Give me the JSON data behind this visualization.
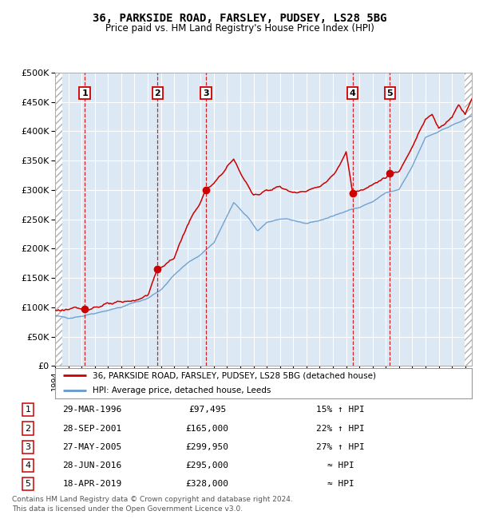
{
  "title": "36, PARKSIDE ROAD, FARSLEY, PUDSEY, LS28 5BG",
  "subtitle": "Price paid vs. HM Land Registry's House Price Index (HPI)",
  "legend_line1": "36, PARKSIDE ROAD, FARSLEY, PUDSEY, LS28 5BG (detached house)",
  "legend_line2": "HPI: Average price, detached house, Leeds",
  "footer1": "Contains HM Land Registry data © Crown copyright and database right 2024.",
  "footer2": "This data is licensed under the Open Government Licence v3.0.",
  "sale_dates_num": [
    1996.24,
    2001.74,
    2005.41,
    2016.49,
    2019.3
  ],
  "sale_prices": [
    97495,
    165000,
    299950,
    295000,
    328000
  ],
  "sale_labels": [
    "1",
    "2",
    "3",
    "4",
    "5"
  ],
  "vline_dates": [
    1996.24,
    2001.74,
    2005.41,
    2016.49,
    2019.3
  ],
  "table_rows": [
    [
      "1",
      "29-MAR-1996",
      "£97,495",
      "15% ↑ HPI"
    ],
    [
      "2",
      "28-SEP-2001",
      "£165,000",
      "22% ↑ HPI"
    ],
    [
      "3",
      "27-MAY-2005",
      "£299,950",
      "27% ↑ HPI"
    ],
    [
      "4",
      "28-JUN-2016",
      "£295,000",
      "≈ HPI"
    ],
    [
      "5",
      "18-APR-2019",
      "£328,000",
      "≈ HPI"
    ]
  ],
  "plot_bg_color": "#dce9f5",
  "red_line_color": "#cc0000",
  "blue_line_color": "#6699cc",
  "vline_color": "#cc0000",
  "dot_color": "#cc0000",
  "grid_color": "#ffffff",
  "ylim": [
    0,
    500000
  ],
  "xlim_start": 1994.0,
  "xlim_end": 2025.5,
  "yticks": [
    0,
    50000,
    100000,
    150000,
    200000,
    250000,
    300000,
    350000,
    400000,
    450000,
    500000
  ],
  "hpi_waypoints_x": [
    1994.0,
    1995.0,
    1996.0,
    1997.0,
    1998.0,
    1999.0,
    2000.0,
    2001.0,
    2002.0,
    2003.0,
    2004.0,
    2005.0,
    2006.0,
    2007.5,
    2008.5,
    2009.3,
    2010.0,
    2011.0,
    2012.0,
    2013.0,
    2014.0,
    2015.0,
    2016.0,
    2017.0,
    2018.0,
    2019.0,
    2020.0,
    2021.0,
    2022.0,
    2023.0,
    2024.0,
    2025.5
  ],
  "hpi_waypoints_y": [
    85000,
    82000,
    85000,
    90000,
    95000,
    100000,
    108000,
    115000,
    130000,
    155000,
    175000,
    190000,
    210000,
    278000,
    255000,
    230000,
    245000,
    250000,
    248000,
    243000,
    248000,
    255000,
    265000,
    270000,
    280000,
    295000,
    300000,
    340000,
    390000,
    400000,
    410000,
    425000
  ],
  "prop_waypoints_x": [
    1994.0,
    1995.5,
    1996.24,
    1997.0,
    1998.0,
    1999.0,
    2000.0,
    2001.0,
    2001.74,
    2002.5,
    2003.0,
    2004.0,
    2005.0,
    2005.41,
    2006.0,
    2007.0,
    2007.5,
    2008.0,
    2009.0,
    2010.0,
    2011.0,
    2012.0,
    2013.0,
    2014.0,
    2015.0,
    2015.5,
    2016.0,
    2016.49,
    2017.0,
    2018.0,
    2019.0,
    2019.3,
    2020.0,
    2021.0,
    2022.0,
    2022.5,
    2023.0,
    2023.5,
    2024.0,
    2024.5,
    2025.0,
    2025.5
  ],
  "prop_waypoints_y": [
    95000,
    97000,
    97495,
    100000,
    105000,
    108000,
    112000,
    120000,
    165000,
    175000,
    185000,
    240000,
    280000,
    299950,
    310000,
    340000,
    352000,
    330000,
    290000,
    300000,
    305000,
    295000,
    300000,
    305000,
    325000,
    340000,
    365000,
    295000,
    300000,
    310000,
    320000,
    328000,
    330000,
    375000,
    420000,
    430000,
    405000,
    415000,
    425000,
    445000,
    430000,
    455000
  ]
}
